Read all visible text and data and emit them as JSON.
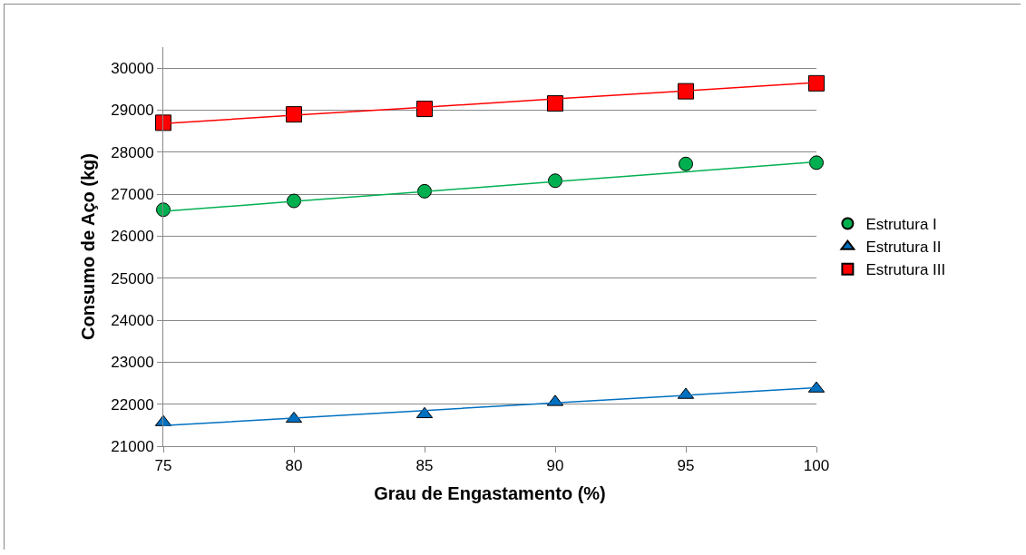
{
  "chart_data": {
    "type": "scatter",
    "xlabel": "Grau de Engastamento (%)",
    "ylabel": "Consumo de Aço (kg)",
    "x": [
      75,
      80,
      85,
      90,
      95,
      100
    ],
    "series": [
      {
        "name": "Estrutura I",
        "color": "#00b050",
        "marker": "circle",
        "values": [
          26630,
          26840,
          27070,
          27320,
          27720,
          27750
        ]
      },
      {
        "name": "Estrutura II",
        "color": "#0070c0",
        "marker": "triangle",
        "values": [
          21570,
          21650,
          21760,
          22050,
          22220,
          22370
        ]
      },
      {
        "name": "Estrutura III",
        "color": "#ff0000",
        "marker": "square",
        "values": [
          28700,
          28900,
          29030,
          29160,
          29450,
          29640
        ]
      },
      {
        "type": "line",
        "color": "#00b050",
        "values": [
          26590,
          26830,
          27060,
          27300,
          27530,
          27770
        ]
      },
      {
        "type": "line",
        "color": "#0070c0",
        "values": [
          21490,
          21670,
          21850,
          22030,
          22210,
          22390
        ]
      },
      {
        "type": "line",
        "color": "#ff0000",
        "values": [
          28680,
          28880,
          29070,
          29270,
          29460,
          29660
        ]
      }
    ],
    "xlim": [
      75,
      100
    ],
    "xticks": [
      75,
      80,
      85,
      90,
      95,
      100
    ],
    "ylim": [
      21000,
      30500
    ],
    "yticks": [
      21000,
      22000,
      23000,
      24000,
      25000,
      26000,
      27000,
      28000,
      29000,
      30000
    ],
    "grid": "y",
    "legend": "right"
  }
}
